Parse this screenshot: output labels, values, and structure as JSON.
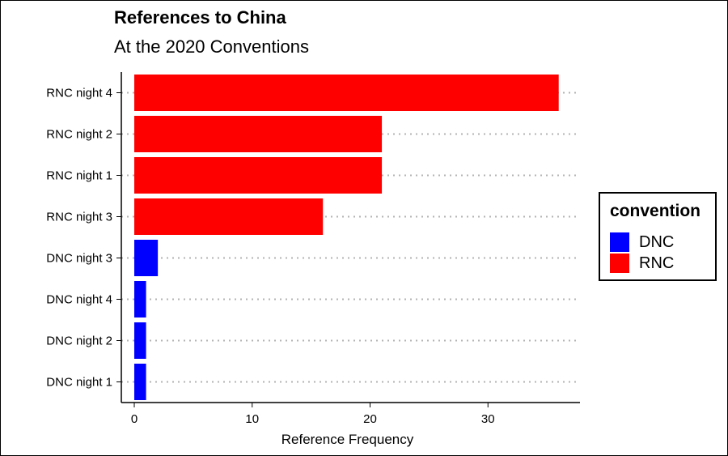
{
  "chart_data": {
    "type": "bar",
    "orientation": "horizontal",
    "title": "References to China",
    "subtitle": "At the 2020 Conventions",
    "xlabel": "Reference Frequency",
    "ylabel": "",
    "xlim": [
      0,
      38
    ],
    "xticks": [
      0,
      10,
      20,
      30
    ],
    "categories": [
      "RNC night 4",
      "RNC night 2",
      "RNC night 1",
      "RNC night 3",
      "DNC night 3",
      "DNC night 4",
      "DNC night 2",
      "DNC night 1"
    ],
    "values": [
      36,
      21,
      21,
      16,
      2,
      1,
      1,
      1
    ],
    "groups": [
      "RNC",
      "RNC",
      "RNC",
      "RNC",
      "DNC",
      "DNC",
      "DNC",
      "DNC"
    ],
    "grid": "horizontal dotted",
    "legend": {
      "title": "convention",
      "position": "right",
      "entries": [
        {
          "name": "DNC",
          "color": "#0000ff"
        },
        {
          "name": "RNC",
          "color": "#ff0000"
        }
      ]
    }
  }
}
